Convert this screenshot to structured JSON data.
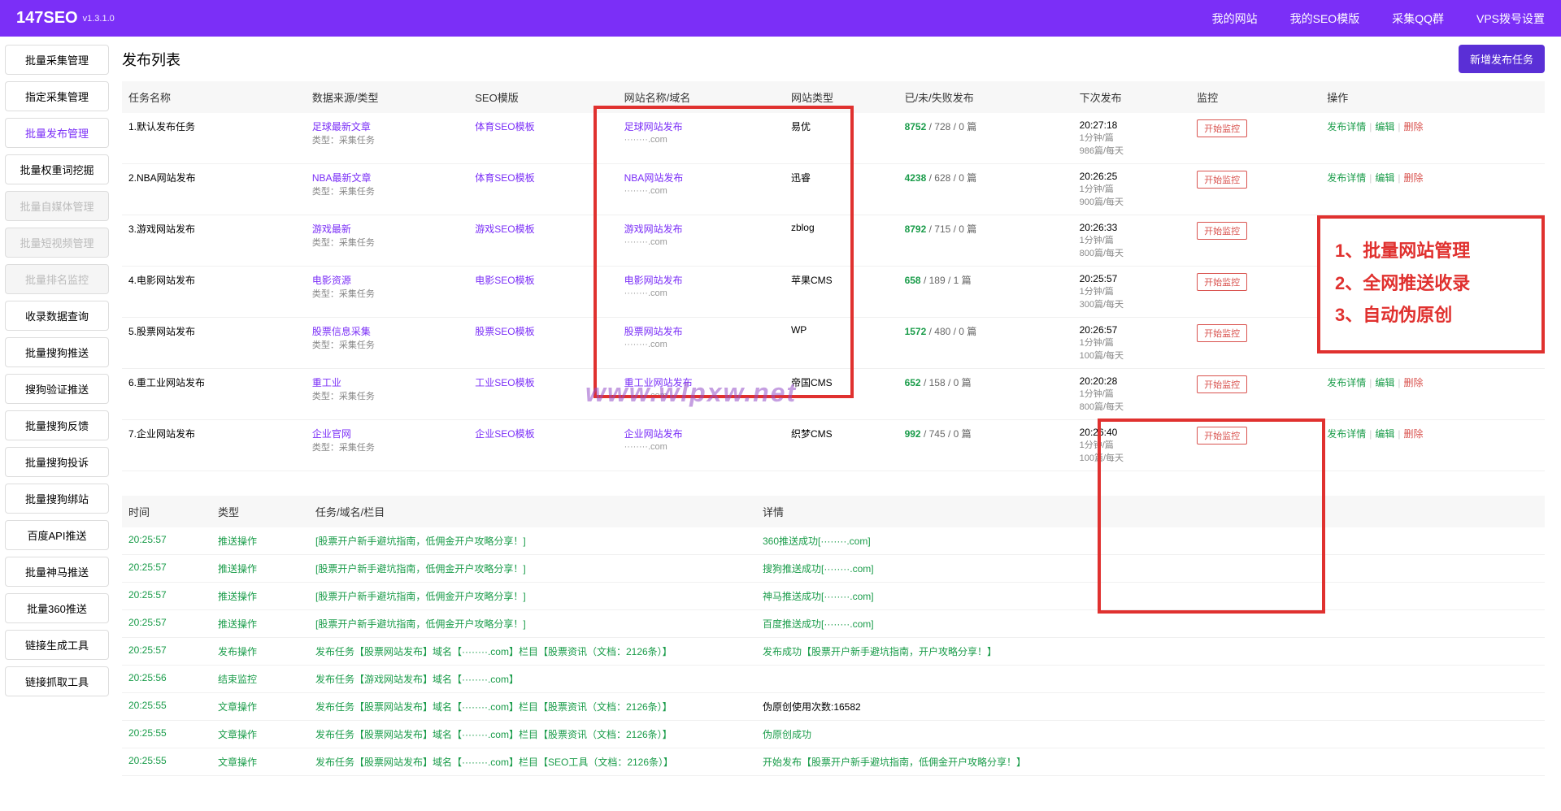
{
  "header": {
    "logo": "147SEO",
    "version": "v1.3.1.0",
    "nav": [
      "我的网站",
      "我的SEO模版",
      "采集QQ群",
      "VPS拨号设置"
    ]
  },
  "sidebar": [
    {
      "label": "批量采集管理",
      "state": ""
    },
    {
      "label": "指定采集管理",
      "state": ""
    },
    {
      "label": "批量发布管理",
      "state": "active"
    },
    {
      "label": "批量权重词挖掘",
      "state": ""
    },
    {
      "label": "批量自媒体管理",
      "state": "disabled"
    },
    {
      "label": "批量短视频管理",
      "state": "disabled"
    },
    {
      "label": "批量排名监控",
      "state": "disabled"
    },
    {
      "label": "收录数据查询",
      "state": ""
    },
    {
      "label": "批量搜狗推送",
      "state": ""
    },
    {
      "label": "搜狗验证推送",
      "state": ""
    },
    {
      "label": "批量搜狗反馈",
      "state": ""
    },
    {
      "label": "批量搜狗投诉",
      "state": ""
    },
    {
      "label": "批量搜狗绑站",
      "state": ""
    },
    {
      "label": "百度API推送",
      "state": ""
    },
    {
      "label": "批量神马推送",
      "state": ""
    },
    {
      "label": "批量360推送",
      "state": ""
    },
    {
      "label": "链接生成工具",
      "state": ""
    },
    {
      "label": "链接抓取工具",
      "state": ""
    }
  ],
  "page": {
    "title": "发布列表",
    "newBtn": "新增发布任务"
  },
  "tableHeaders": [
    "任务名称",
    "数据来源/类型",
    "SEO模版",
    "网站名称/域名",
    "网站类型",
    "已/未/失败发布",
    "下次发布",
    "监控",
    "操作"
  ],
  "subType": "类型：采集任务",
  "monitorBtn": "开始监控",
  "ops": {
    "detail": "发布详情",
    "edit": "编辑",
    "del": "删除"
  },
  "rows": [
    {
      "name": "1.默认发布任务",
      "src": "足球最新文章",
      "tpl": "体育SEO模板",
      "site": "足球网站发布",
      "dom": "········.com",
      "cms": "易优",
      "pub1": "8752",
      "pub2": "728",
      "pub3": "0",
      "next": "20:27:18",
      "int": "1分钟/篇",
      "rate": "986篇/每天"
    },
    {
      "name": "2.NBA网站发布",
      "src": "NBA最新文章",
      "tpl": "体育SEO模板",
      "site": "NBA网站发布",
      "dom": "········.com",
      "cms": "迅睿",
      "pub1": "4238",
      "pub2": "628",
      "pub3": "0",
      "next": "20:26:25",
      "int": "1分钟/篇",
      "rate": "900篇/每天"
    },
    {
      "name": "3.游戏网站发布",
      "src": "游戏最新",
      "tpl": "游戏SEO模板",
      "site": "游戏网站发布",
      "dom": "········.com",
      "cms": "zblog",
      "pub1": "8792",
      "pub2": "715",
      "pub3": "0",
      "next": "20:26:33",
      "int": "1分钟/篇",
      "rate": "800篇/每天"
    },
    {
      "name": "4.电影网站发布",
      "src": "电影资源",
      "tpl": "电影SEO模板",
      "site": "电影网站发布",
      "dom": "········.com",
      "cms": "苹果CMS",
      "pub1": "658",
      "pub2": "189",
      "pub3": "1",
      "next": "20:25:57",
      "int": "1分钟/篇",
      "rate": "300篇/每天"
    },
    {
      "name": "5.股票网站发布",
      "src": "股票信息采集",
      "tpl": "股票SEO模板",
      "site": "股票网站发布",
      "dom": "········.com",
      "cms": "WP",
      "pub1": "1572",
      "pub2": "480",
      "pub3": "0",
      "next": "20:26:57",
      "int": "1分钟/篇",
      "rate": "100篇/每天"
    },
    {
      "name": "6.重工业网站发布",
      "src": "重工业",
      "tpl": "工业SEO模板",
      "site": "重工业网站发布",
      "dom": "········.com",
      "cms": "帝国CMS",
      "pub1": "652",
      "pub2": "158",
      "pub3": "0",
      "next": "20:20:28",
      "int": "1分钟/篇",
      "rate": "800篇/每天"
    },
    {
      "name": "7.企业网站发布",
      "src": "企业官网",
      "tpl": "企业SEO模板",
      "site": "企业网站发布",
      "dom": "········.com",
      "cms": "织梦CMS",
      "pub1": "992",
      "pub2": "745",
      "pub3": "0",
      "next": "20:26:40",
      "int": "1分钟/篇",
      "rate": "100篇/每天"
    }
  ],
  "logHeaders": [
    "时间",
    "类型",
    "任务/域名/栏目",
    "详情"
  ],
  "logs": [
    {
      "t": "20:25:57",
      "ty": "推送操作",
      "task": "[股票开户新手避坑指南，低佣金开户攻略分享！]",
      "d": "360推送成功[········.com]",
      "g": 1
    },
    {
      "t": "20:25:57",
      "ty": "推送操作",
      "task": "[股票开户新手避坑指南，低佣金开户攻略分享！]",
      "d": "搜狗推送成功[········.com]",
      "g": 1
    },
    {
      "t": "20:25:57",
      "ty": "推送操作",
      "task": "[股票开户新手避坑指南，低佣金开户攻略分享！]",
      "d": "神马推送成功[········.com]",
      "g": 1
    },
    {
      "t": "20:25:57",
      "ty": "推送操作",
      "task": "[股票开户新手避坑指南，低佣金开户攻略分享！]",
      "d": "百度推送成功[········.com]",
      "g": 1
    },
    {
      "t": "20:25:57",
      "ty": "发布操作",
      "task": "发布任务【股票网站发布】域名【········.com】栏目【股票资讯（文档：2126条）】",
      "d": "发布成功【股票开户新手避坑指南，开户攻略分享！】",
      "g": 1
    },
    {
      "t": "20:25:56",
      "ty": "结束监控",
      "task": "发布任务【游戏网站发布】域名【········.com】",
      "d": "",
      "g": 0
    },
    {
      "t": "20:25:55",
      "ty": "文章操作",
      "task": "发布任务【股票网站发布】域名【········.com】栏目【股票资讯（文档：2126条）】",
      "d": "伪原创使用次数:16582",
      "g": 0
    },
    {
      "t": "20:25:55",
      "ty": "文章操作",
      "task": "发布任务【股票网站发布】域名【········.com】栏目【股票资讯（文档：2126条）】",
      "d": "伪原创成功",
      "g": 1
    },
    {
      "t": "20:25:55",
      "ty": "文章操作",
      "task": "发布任务【股票网站发布】域名【········.com】栏目【SEO工具（文档：2126条）】",
      "d": "开始发布【股票开户新手避坑指南，低佣金开户攻略分享！】",
      "g": 1
    }
  ],
  "callout": [
    "1、批量网站管理",
    "2、全网推送收录",
    "3、自动伪原创"
  ],
  "watermark": "www.wlpxw.net",
  "unitSuffix": " 篇"
}
